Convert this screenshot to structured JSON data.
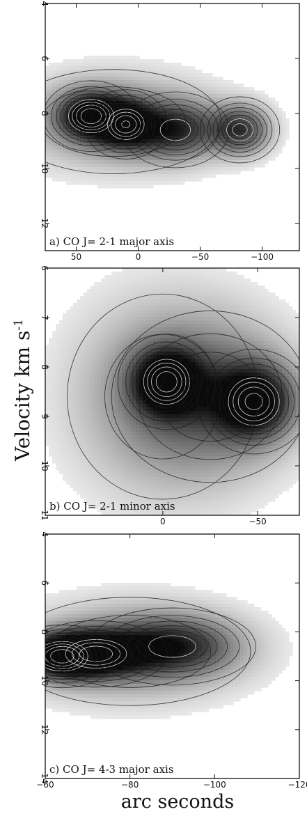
{
  "figure": {
    "ylabel": "Velocity  km s",
    "ylabel_sup": "-1",
    "xlabel": "arc seconds"
  },
  "chart_data": [
    {
      "type": "heatmap",
      "panel_label": "a)  CO J= 2-1 major axis",
      "xlim": [
        75,
        -130
      ],
      "ylim": [
        4,
        13
      ],
      "xticks": [
        50,
        0,
        -50,
        -100
      ],
      "yticks": [
        4,
        6,
        8,
        10,
        12
      ],
      "colormap": "grayscale with contours",
      "blobs": [
        {
          "x": 38,
          "y": 8.1,
          "sx": 18,
          "sy": 0.6,
          "a": 1.0
        },
        {
          "x": 10,
          "y": 8.4,
          "sx": 16,
          "sy": 0.6,
          "a": 0.92
        },
        {
          "x": -30,
          "y": 8.6,
          "sx": 22,
          "sy": 0.7,
          "a": 0.7
        },
        {
          "x": -82,
          "y": 8.6,
          "sx": 16,
          "sy": 0.6,
          "a": 0.75
        },
        {
          "x": 20,
          "y": 8.3,
          "sx": 55,
          "sy": 1.2,
          "a": 0.35
        }
      ]
    },
    {
      "type": "heatmap",
      "panel_label": "b)  CO J= 2-1 minor axis",
      "xlim": [
        62,
        -72
      ],
      "ylim": [
        6,
        11
      ],
      "xticks": [
        0,
        -50
      ],
      "yticks": [
        6,
        7,
        8,
        9,
        10,
        11
      ],
      "colormap": "grayscale with contours",
      "blobs": [
        {
          "x": -2,
          "y": 8.3,
          "sx": 12,
          "sy": 0.45,
          "a": 1.0
        },
        {
          "x": -48,
          "y": 8.7,
          "sx": 14,
          "sy": 0.5,
          "a": 0.95
        },
        {
          "x": -25,
          "y": 8.6,
          "sx": 30,
          "sy": 1.0,
          "a": 0.45
        },
        {
          "x": 0,
          "y": 8.6,
          "sx": 34,
          "sy": 1.4,
          "a": 0.3
        }
      ]
    },
    {
      "type": "heatmap",
      "panel_label": "c)  CO J= 4-3 major axis",
      "xlim": [
        -60,
        -120
      ],
      "ylim": [
        4,
        14
      ],
      "xticks": [
        -60,
        -80,
        -100,
        -120
      ],
      "yticks": [
        4,
        6,
        8,
        10,
        12,
        14
      ],
      "colormap": "grayscale with contours",
      "blobs": [
        {
          "x": -64,
          "y": 9.0,
          "sx": 6,
          "sy": 0.6,
          "a": 1.0
        },
        {
          "x": -72,
          "y": 8.9,
          "sx": 8,
          "sy": 0.65,
          "a": 0.9
        },
        {
          "x": -90,
          "y": 8.6,
          "sx": 10,
          "sy": 0.8,
          "a": 0.7
        },
        {
          "x": -80,
          "y": 8.8,
          "sx": 18,
          "sy": 1.4,
          "a": 0.35
        }
      ]
    }
  ]
}
